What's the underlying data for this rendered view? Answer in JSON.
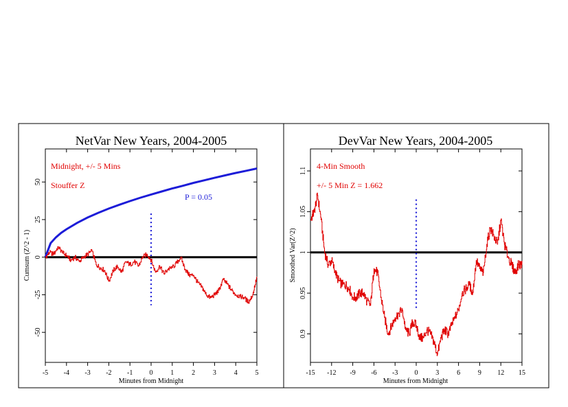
{
  "chart_data": [
    {
      "type": "line",
      "title": "NetVar New Years, 2004-2005",
      "xlabel": "Minutes from Midnight",
      "ylabel": "Cumsum (Z^2 - 1)",
      "xlim": [
        -5,
        5
      ],
      "ylim": [
        -70,
        72
      ],
      "xticks": [
        "-5",
        "-4",
        "-3",
        "-2",
        "-1",
        "0",
        "1",
        "2",
        "3",
        "4",
        "5"
      ],
      "yticks": [
        "-50",
        "-25",
        "0",
        "25",
        "50"
      ],
      "annotations": [
        "Midnight, +/- 5 Mins",
        "Stouffer Z",
        "P = 0.05"
      ],
      "reference_line_y": 0,
      "marker_x": 0,
      "marker_range": [
        -32,
        29
      ],
      "series": [
        {
          "role": "cumulative deviation",
          "color": "#e00000",
          "x": [
            -5.0,
            -4.8,
            -4.6,
            -4.4,
            -4.2,
            -4.0,
            -3.8,
            -3.6,
            -3.4,
            -3.2,
            -3.0,
            -2.8,
            -2.6,
            -2.4,
            -2.2,
            -2.0,
            -1.8,
            -1.6,
            -1.4,
            -1.2,
            -1.0,
            -0.8,
            -0.6,
            -0.4,
            -0.2,
            0.0,
            0.2,
            0.4,
            0.6,
            0.8,
            1.0,
            1.2,
            1.4,
            1.6,
            1.8,
            2.0,
            2.2,
            2.4,
            2.6,
            2.8,
            3.0,
            3.2,
            3.4,
            3.6,
            3.8,
            4.0,
            4.2,
            4.4,
            4.6,
            4.8,
            5.0
          ],
          "values": [
            0,
            3,
            2,
            7,
            3,
            1,
            -2,
            0,
            -3,
            0,
            2,
            4,
            -5,
            -7,
            -9,
            -16,
            -9,
            -6,
            -10,
            -3,
            -5,
            -3,
            -6,
            0,
            2,
            -2,
            -10,
            -6,
            -11,
            -8,
            -7,
            -4,
            0,
            -8,
            -12,
            -12,
            -17,
            -20,
            -25,
            -27,
            -25,
            -22,
            -15,
            -18,
            -22,
            -25,
            -26,
            -27,
            -30,
            -25,
            -13
          ]
        },
        {
          "role": "P = 0.05 envelope",
          "color": "#1c1cd8",
          "x": [
            -5.0,
            -4.75,
            -4.5,
            -4.25,
            -4.0,
            -3.5,
            -3.0,
            -2.5,
            -2.0,
            -1.5,
            -1.0,
            -0.5,
            0.0,
            0.5,
            1.0,
            1.5,
            2.0,
            2.5,
            3.0,
            3.5,
            4.0,
            4.5,
            5.0
          ],
          "values": [
            0,
            9.3,
            13.2,
            16.2,
            18.6,
            22.8,
            26.4,
            29.5,
            32.3,
            34.9,
            37.3,
            39.6,
            41.7,
            43.7,
            45.7,
            47.5,
            49.4,
            51.1,
            52.8,
            54.4,
            56.0,
            57.5,
            59.0
          ]
        }
      ]
    },
    {
      "type": "line",
      "title": "DevVar New Years, 2004-2005",
      "xlabel": "Minutes from Midnight",
      "ylabel": "Smoothed Var(Z^2)",
      "xlim": [
        -15,
        15
      ],
      "ylim": [
        0.865,
        1.127
      ],
      "xticks": [
        "-15",
        "-12",
        "-9",
        "-6",
        "-3",
        "0",
        "3",
        "6",
        "9",
        "12",
        "15"
      ],
      "yticks": [
        "0.9",
        "0.95",
        "1",
        "1.05",
        "1.1"
      ],
      "annotations": [
        "4-Min Smooth",
        "+/- 5 Min Z = 1.662"
      ],
      "reference_line_y": 1,
      "marker_x": 0,
      "marker_range": [
        0.93,
        1.065
      ],
      "series": [
        {
          "role": "smoothed variance",
          "color": "#e00000",
          "x": [
            -15.0,
            -14.5,
            -14.0,
            -13.5,
            -13.0,
            -12.5,
            -12.0,
            -11.5,
            -11.0,
            -10.5,
            -10.0,
            -9.5,
            -9.0,
            -8.5,
            -8.0,
            -7.5,
            -7.0,
            -6.5,
            -6.0,
            -5.5,
            -5.0,
            -4.5,
            -4.0,
            -3.5,
            -3.0,
            -2.5,
            -2.0,
            -1.5,
            -1.0,
            -0.5,
            0.0,
            0.5,
            1.0,
            1.5,
            2.0,
            2.5,
            3.0,
            3.5,
            4.0,
            4.5,
            5.0,
            5.5,
            6.0,
            6.5,
            7.0,
            7.5,
            8.0,
            8.5,
            9.0,
            9.5,
            10.0,
            10.5,
            11.0,
            11.5,
            12.0,
            12.5,
            13.0,
            13.5,
            14.0,
            14.5,
            15.0
          ],
          "values": [
            1.04,
            1.05,
            1.07,
            1.04,
            1.0,
            0.985,
            0.99,
            0.975,
            0.965,
            0.96,
            0.96,
            0.955,
            0.945,
            0.945,
            0.95,
            0.95,
            0.94,
            0.935,
            0.98,
            0.975,
            0.945,
            0.92,
            0.9,
            0.91,
            0.92,
            0.925,
            0.93,
            0.905,
            0.9,
            0.915,
            0.91,
            0.895,
            0.895,
            0.905,
            0.9,
            0.89,
            0.875,
            0.895,
            0.905,
            0.9,
            0.91,
            0.92,
            0.93,
            0.95,
            0.955,
            0.96,
            0.95,
            0.99,
            0.98,
            0.975,
            1.01,
            1.03,
            1.02,
            1.01,
            1.04,
            1.01,
            0.995,
            0.985,
            0.975,
            0.985,
            0.985
          ]
        }
      ]
    }
  ]
}
